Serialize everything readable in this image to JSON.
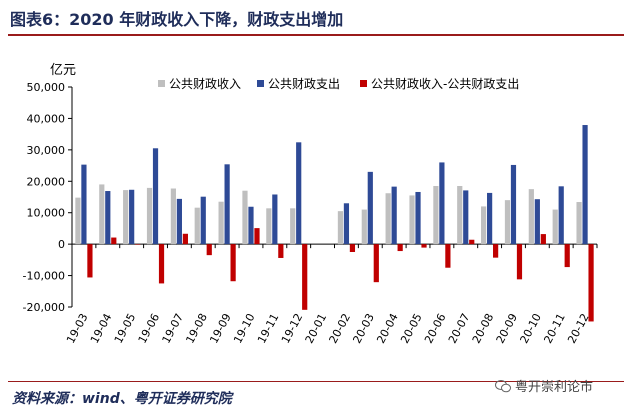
{
  "header": {
    "title": "图表6：2020 年财政收入下降，财政支出增加"
  },
  "footer": {
    "source": "资料来源：wind、粤开证券研究院",
    "watermark": "粤开崇利论市"
  },
  "colors": {
    "revenue": "#bfbfbf",
    "expenditure": "#2e4a96",
    "balance": "#c00000",
    "title": "#1f2d5a",
    "rule": "#9a1b1b"
  },
  "chart_data": {
    "type": "bar",
    "unit_label": "亿元",
    "categories": [
      "19-03",
      "19-04",
      "19-05",
      "19-06",
      "19-07",
      "19-08",
      "19-09",
      "19-10",
      "19-11",
      "19-12",
      "20-01",
      "20-02",
      "20-03",
      "20-04",
      "20-05",
      "20-06",
      "20-07",
      "20-08",
      "20-09",
      "20-10",
      "20-11",
      "20-12"
    ],
    "series": [
      {
        "name": "公共财政收入",
        "color": "#bfbfbf",
        "values": [
          14800,
          19000,
          17200,
          17900,
          17700,
          11600,
          13500,
          17000,
          11400,
          11400,
          null,
          10500,
          11000,
          16200,
          15500,
          18500,
          18500,
          12000,
          14000,
          17500,
          11000,
          13400
        ]
      },
      {
        "name": "公共财政支出",
        "color": "#2e4a96",
        "values": [
          25300,
          16900,
          17300,
          30500,
          14400,
          15100,
          25400,
          11900,
          15800,
          32400,
          null,
          13000,
          23000,
          18300,
          16600,
          26000,
          17100,
          16300,
          25200,
          14300,
          18400,
          37900
        ]
      },
      {
        "name": "公共财政收入-公共财政支出",
        "color": "#c00000",
        "values": [
          -10600,
          2100,
          -100,
          -12500,
          3300,
          -3500,
          -11800,
          5100,
          -4400,
          -20900,
          null,
          -2500,
          -12100,
          -2200,
          -1100,
          -7500,
          1400,
          -4300,
          -11200,
          3200,
          -7300,
          -24600
        ]
      }
    ],
    "y_ticks": [
      "50,000",
      "40,000",
      "30,000",
      "20,000",
      "10,000",
      "0",
      "-10,000",
      "-20,000"
    ],
    "ylim": [
      -20000,
      50000
    ],
    "legend_position": "top",
    "grid": false
  }
}
